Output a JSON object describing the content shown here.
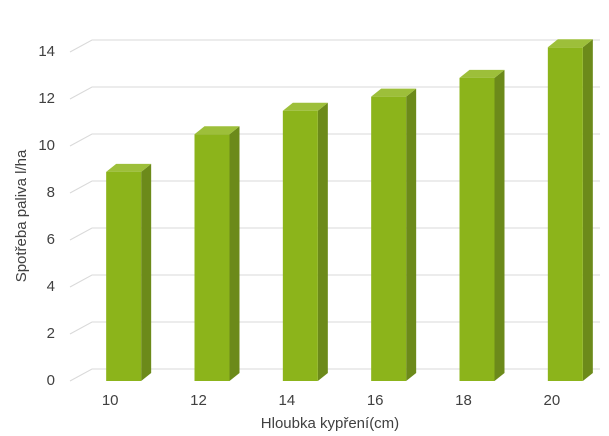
{
  "chart_data": {
    "type": "bar3d",
    "y_label": "Spotřeba paliva l/ha",
    "x_label": "Hloubka kypření(cm)",
    "categories": [
      "10",
      "12",
      "14",
      "16",
      "18",
      "20"
    ],
    "values": [
      8.9,
      10.5,
      11.5,
      12.1,
      12.9,
      14.2
    ],
    "color": "#8cb41b",
    "ylim": [
      0,
      14
    ],
    "yticks": [
      0,
      2,
      4,
      6,
      8,
      10,
      12,
      14
    ],
    "grid": true
  }
}
